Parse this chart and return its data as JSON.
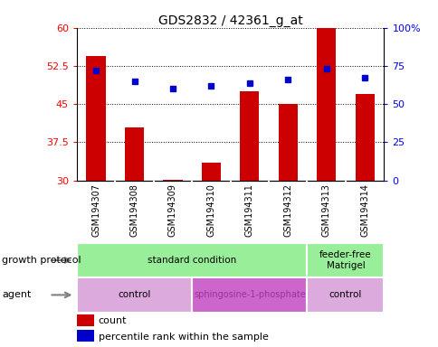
{
  "title": "GDS2832 / 42361_g_at",
  "samples": [
    "GSM194307",
    "GSM194308",
    "GSM194309",
    "GSM194310",
    "GSM194311",
    "GSM194312",
    "GSM194313",
    "GSM194314"
  ],
  "counts": [
    54.5,
    40.5,
    30.2,
    33.5,
    47.5,
    45.0,
    60.0,
    47.0
  ],
  "percentile_ranks": [
    72,
    65,
    60,
    62,
    64,
    66,
    73,
    67
  ],
  "ylim_left": [
    30,
    60
  ],
  "ylim_right": [
    0,
    100
  ],
  "yticks_left": [
    30,
    37.5,
    45,
    52.5,
    60
  ],
  "yticks_right": [
    0,
    25,
    50,
    75,
    100
  ],
  "bar_color": "#cc0000",
  "dot_color": "#0000cc",
  "growth_protocol_groups": [
    {
      "label": "standard condition",
      "start": 0,
      "end": 6,
      "color": "#99ee99"
    },
    {
      "label": "feeder-free\nMatrigel",
      "start": 6,
      "end": 8,
      "color": "#99ee99"
    }
  ],
  "agent_groups": [
    {
      "label": "control",
      "start": 0,
      "end": 3,
      "color": "#ddaadd"
    },
    {
      "label": "sphingosine-1-phosphate",
      "start": 3,
      "end": 6,
      "color": "#cc66cc"
    },
    {
      "label": "control",
      "start": 6,
      "end": 8,
      "color": "#ddaadd"
    }
  ],
  "legend_count_label": "count",
  "legend_pct_label": "percentile rank within the sample",
  "growth_protocol_label": "growth protocol",
  "agent_label": "agent",
  "background_color": "#ffffff",
  "tick_area_bg": "#cccccc",
  "sph_label_color": "#993399"
}
